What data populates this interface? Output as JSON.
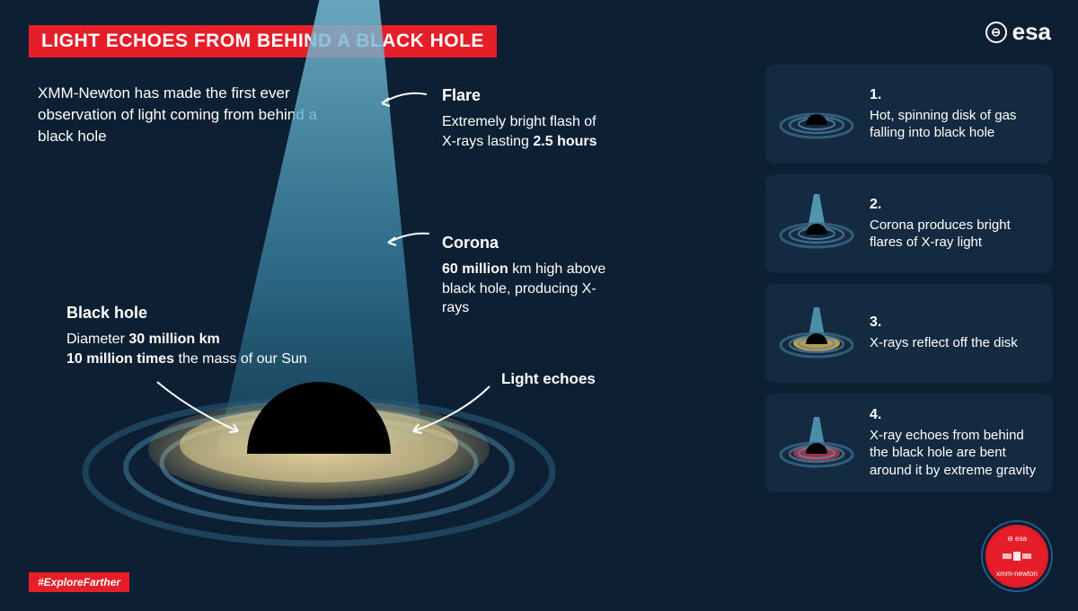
{
  "title": "LIGHT ECHOES FROM BEHIND A BLACK HOLE",
  "logo": {
    "symbol": "⊖",
    "text": "esa"
  },
  "intro": "XMM-Newton has made the first ever observation of light coming from behind a black hole",
  "hashtag": "#ExploreFarther",
  "colors": {
    "background": "#0d1f33",
    "accent_red": "#e61e2a",
    "panel_bg": "#142a40",
    "cone_light": "#5aa8c2",
    "cone_dark": "#2a6e88",
    "disk_glow": "#e8d49a",
    "disk_ring": "#3a6a88",
    "black_hole": "#000000",
    "step3_glow": "#e8b84a",
    "step4_glow": "#b8354a",
    "text": "#ffffff"
  },
  "annotations": {
    "flare": {
      "title": "Flare",
      "body_html": "Extremely bright flash of X-rays lasting <b>2.5 hours</b>"
    },
    "corona": {
      "title": "Corona",
      "body_html": "<b>60 million</b> km high above black hole, producing X-rays"
    },
    "blackhole": {
      "title": "Black hole",
      "body_html": "Diameter <b>30 million km</b><br><b>10 million times</b> the mass of our Sun"
    },
    "echoes": {
      "title": "Light echoes"
    }
  },
  "steps": [
    {
      "num": "1.",
      "desc": "Hot, spinning disk of gas falling into black hole",
      "variant": "disk"
    },
    {
      "num": "2.",
      "desc": "Corona produces bright flares of X-ray light",
      "variant": "flare"
    },
    {
      "num": "3.",
      "desc": "X-rays reflect off the disk",
      "variant": "reflect"
    },
    {
      "num": "4.",
      "desc": "X-ray echoes from behind the black hole are bent around it by extreme gravity",
      "variant": "echo"
    }
  ],
  "badge": {
    "top": "⊖ esa",
    "bottom": "xmm-newton"
  }
}
